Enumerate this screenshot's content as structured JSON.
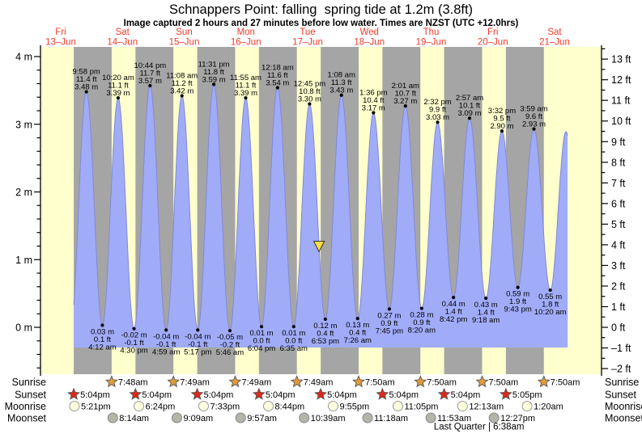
{
  "title": "Schnappers Point: falling  spring tide at 1.2m (3.8ft)",
  "subtitle": "Image captured 2 hours and 27 minutes before low water. Times are NZST (UTC +12.0hrs)",
  "colors": {
    "day_band": "#ffffcd",
    "night_band": "#a5a5a5",
    "tide_fill": "#a0acf8",
    "tide_stroke": "#8089d8",
    "day_label_red": "#f23b2c",
    "sunrise_star": "#e49b3c",
    "sunset_star": "#e02816",
    "moonrise_circle": "#ffffe0",
    "moonset_circle": "#b4b4aa",
    "now_marker": "#ffdf3f",
    "axis_black": "#000000"
  },
  "chart_data": {
    "type": "area",
    "title": "Schnappers Point: falling  spring tide at 1.2m (3.8ft)",
    "x_axis_days": [
      {
        "name": "Fri",
        "date": "13–Jun"
      },
      {
        "name": "Sat",
        "date": "14–Jun"
      },
      {
        "name": "Sun",
        "date": "15–Jun"
      },
      {
        "name": "Mon",
        "date": "16–Jun"
      },
      {
        "name": "Tue",
        "date": "17–Jun"
      },
      {
        "name": "Wed",
        "date": "18–Jun"
      },
      {
        "name": "Thu",
        "date": "19–Jun"
      },
      {
        "name": "Fri",
        "date": "20–Jun"
      },
      {
        "name": "Sat",
        "date": "21–Jun"
      }
    ],
    "y_axis_left": {
      "unit": "m",
      "labels": [
        "4 m",
        "3 m",
        "2 m",
        "1 m",
        "0 m"
      ],
      "values": [
        4,
        3,
        2,
        1,
        0
      ],
      "minor_step": 0.2,
      "minor_min": -0.6,
      "minor_max": 4.0
    },
    "y_axis_right": {
      "unit": "ft",
      "values": [
        13,
        12,
        11,
        10,
        9,
        8,
        7,
        6,
        5,
        4,
        3,
        2,
        1,
        0,
        -1,
        -2
      ],
      "minor_step": 0.5
    },
    "ylim_m": [
      -0.69,
      4.14
    ],
    "fill_base_m": -0.2985,
    "data_range_t": [
      0.71111,
      8.71181
    ],
    "tide_extremes": [
      {
        "type": "high",
        "time": "9:58 pm",
        "ft": "11.4 ft",
        "m": "3.48 m",
        "t": 0.91528,
        "h": 3.48
      },
      {
        "type": "low",
        "time": "4:12 am",
        "ft": "0.1 ft",
        "m": "0.03 m",
        "t": 1.175,
        "h": 0.03
      },
      {
        "type": "high",
        "time": "10:20 am",
        "ft": "11.1 ft",
        "m": "3.39 m",
        "t": 1.43056,
        "h": 3.39
      },
      {
        "type": "low",
        "time": "4:30 pm",
        "ft": "-0.1 ft",
        "m": "-0.02 m",
        "t": 1.6875,
        "h": -0.02
      },
      {
        "type": "high",
        "time": "10:44 pm",
        "ft": "11.7 ft",
        "m": "3.57 m",
        "t": 1.94722,
        "h": 3.57
      },
      {
        "type": "low",
        "time": "4:59 am",
        "ft": "-0.1 ft",
        "m": "-0.04 m",
        "t": 2.20764,
        "h": -0.04
      },
      {
        "type": "high",
        "time": "11:08 am",
        "ft": "11.2 ft",
        "m": "3.42 m",
        "t": 2.46389,
        "h": 3.42
      },
      {
        "type": "low",
        "time": "5:17 pm",
        "ft": "-0.1 ft",
        "m": "-0.04 m",
        "t": 2.72014,
        "h": -0.04
      },
      {
        "type": "high",
        "time": "11:31 pm",
        "ft": "11.8 ft",
        "m": "3.59 m",
        "t": 2.97986,
        "h": 3.59
      },
      {
        "type": "low",
        "time": "5:46 am",
        "ft": "-0.2 ft",
        "m": "-0.05 m",
        "t": 3.24028,
        "h": -0.05
      },
      {
        "type": "high",
        "time": "11:55 am",
        "ft": "11.1 ft",
        "m": "3.39 m",
        "t": 3.49653,
        "h": 3.39
      },
      {
        "type": "low",
        "time": "6:04 pm",
        "ft": "0.0 ft",
        "m": "0.01 m",
        "t": 3.75278,
        "h": 0.01
      },
      {
        "type": "high",
        "time": "12:18 am",
        "ft": "11.6 ft",
        "m": "3.54 m",
        "t": 4.0125,
        "h": 3.54
      },
      {
        "type": "low",
        "time": "6:35 am",
        "ft": "0.0 ft",
        "m": "0.01 m",
        "t": 4.27431,
        "h": 0.01
      },
      {
        "type": "high",
        "time": "12:45 pm",
        "ft": "10.8 ft",
        "m": "3.30 m",
        "t": 4.53125,
        "h": 3.3
      },
      {
        "type": "low",
        "time": "6:53 pm",
        "ft": "0.4 ft",
        "m": "0.12 m",
        "t": 4.78681,
        "h": 0.12
      },
      {
        "type": "high",
        "time": "1:08 am",
        "ft": "11.3 ft",
        "m": "3.43 m",
        "t": 5.04722,
        "h": 3.43
      },
      {
        "type": "low",
        "time": "7:26 am",
        "ft": "0.4 ft",
        "m": "0.13 m",
        "t": 5.30972,
        "h": 0.13
      },
      {
        "type": "high",
        "time": "1:36 pm",
        "ft": "10.4 ft",
        "m": "3.17 m",
        "t": 5.56667,
        "h": 3.17
      },
      {
        "type": "low",
        "time": "7:45 pm",
        "ft": "0.9 ft",
        "m": "0.27 m",
        "t": 5.82292,
        "h": 0.27
      },
      {
        "type": "high",
        "time": "2:01 am",
        "ft": "10.7 ft",
        "m": "3.27 m",
        "t": 6.08403,
        "h": 3.27
      },
      {
        "type": "low",
        "time": "8:20 am",
        "ft": "0.9 ft",
        "m": "0.28 m",
        "t": 6.34722,
        "h": 0.28
      },
      {
        "type": "high",
        "time": "2:32 pm",
        "ft": "9.9 ft",
        "m": "3.03 m",
        "t": 6.60556,
        "h": 3.03
      },
      {
        "type": "low",
        "time": "8:42 pm",
        "ft": "1.4 ft",
        "m": "0.44 m",
        "t": 6.8625,
        "h": 0.44
      },
      {
        "type": "high",
        "time": "2:57 am",
        "ft": "10.1 ft",
        "m": "3.09 m",
        "t": 7.12292,
        "h": 3.09
      },
      {
        "type": "low",
        "time": "9:18 am",
        "ft": "1.4 ft",
        "m": "0.43 m",
        "t": 7.3875,
        "h": 0.43
      },
      {
        "type": "high",
        "time": "3:32 pm",
        "ft": "9.5 ft",
        "m": "2.90 m",
        "t": 7.64722,
        "h": 2.9
      },
      {
        "type": "low",
        "time": "9:43 pm",
        "ft": "1.9 ft",
        "m": "0.59 m",
        "t": 7.90486,
        "h": 0.59
      },
      {
        "type": "high",
        "time": "3:59 am",
        "ft": "9.6 ft",
        "m": "2.93 m",
        "t": 8.16597,
        "h": 2.93
      },
      {
        "type": "low",
        "time": "10:20 am",
        "ft": "1.8 ft",
        "m": "0.55 m",
        "t": 8.43056,
        "h": 0.55
      }
    ],
    "hidden_extremes_pre": [
      {
        "t": 0.66,
        "h": 0.0
      }
    ],
    "hidden_extremes_post": [
      {
        "t": 8.6847,
        "h": 2.89
      },
      {
        "t": 8.95,
        "h": 0.6
      }
    ],
    "now_marker": {
      "t": 4.6847,
      "level_m": 1.2
    }
  },
  "footer": {
    "rows": [
      {
        "label": "Sunrise",
        "icon": "sunrise-star",
        "events": [
          {
            "time": "7:48am",
            "t": 1.325
          },
          {
            "time": "7:49am",
            "t": 2.32569
          },
          {
            "time": "7:49am",
            "t": 3.32569
          },
          {
            "time": "7:49am",
            "t": 4.32569
          },
          {
            "time": "7:50am",
            "t": 5.32639
          },
          {
            "time": "7:50am",
            "t": 6.32639
          },
          {
            "time": "7:50am",
            "t": 7.32639
          },
          {
            "time": "7:50am",
            "t": 8.32639
          }
        ]
      },
      {
        "label": "Sunset",
        "icon": "sunset-star",
        "events": [
          {
            "time": "5:04pm",
            "t": 0.71111
          },
          {
            "time": "5:04pm",
            "t": 1.71111
          },
          {
            "time": "5:04pm",
            "t": 2.71111
          },
          {
            "time": "5:04pm",
            "t": 3.71111
          },
          {
            "time": "5:04pm",
            "t": 4.71111
          },
          {
            "time": "5:04pm",
            "t": 5.71111
          },
          {
            "time": "5:04pm",
            "t": 6.71111
          },
          {
            "time": "5:05pm",
            "t": 7.71181
          }
        ]
      },
      {
        "label": "Moonrise",
        "icon": "moonrise-circle",
        "events": [
          {
            "time": "5:21pm",
            "t": 0.72292
          },
          {
            "time": "6:24pm",
            "t": 1.76667
          },
          {
            "time": "7:33pm",
            "t": 2.81458
          },
          {
            "time": "8:44pm",
            "t": 3.86389
          },
          {
            "time": "9:55pm",
            "t": 4.91319
          },
          {
            "time": "11:05pm",
            "t": 5.96181
          },
          {
            "time": "12:13am",
            "t": 7.00903
          },
          {
            "time": "1:20am",
            "t": 8.05556
          }
        ]
      },
      {
        "label": "Moonset",
        "icon": "moonset-circle",
        "events": [
          {
            "time": "8:14am",
            "t": 1.34306
          },
          {
            "time": "9:09am",
            "t": 2.38125
          },
          {
            "time": "9:57am",
            "t": 3.41458
          },
          {
            "time": "10:39am",
            "t": 4.44375
          },
          {
            "time": "11:18am",
            "t": 5.47083
          },
          {
            "time": "11:53am",
            "t": 6.49514
          },
          {
            "time": "12:27pm",
            "t": 7.51875
          }
        ]
      }
    ],
    "moon_phase": {
      "text": "Last Quarter | 6:38am",
      "t": 7.27639
    }
  }
}
